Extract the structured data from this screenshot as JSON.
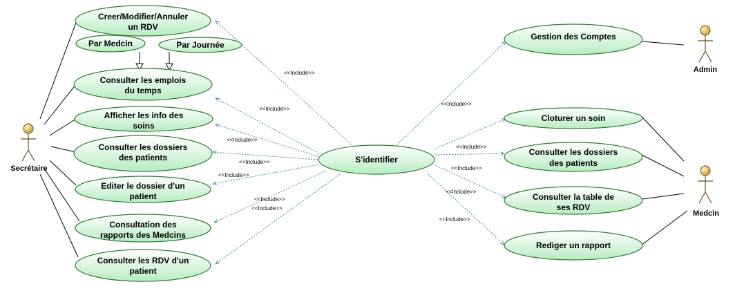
{
  "actors": {
    "secretaire": "Secrétaire",
    "admin": "Admin",
    "medcin": "Medcin"
  },
  "use_cases": {
    "creer_rdv": [
      "Creer/Modifier/Annuler",
      "un RDV"
    ],
    "par_medcin": [
      "Par Medcin"
    ],
    "par_journee": [
      "Par Journée"
    ],
    "consulter_emplois": [
      "Consulter les emplois",
      "du temps"
    ],
    "afficher_soins": [
      "Afficher les info des",
      "soins"
    ],
    "consulter_dossiers_sec": [
      "Consulter les dossiers",
      "des patients"
    ],
    "editer_dossier": [
      "Editer le dossier d'un",
      "patient"
    ],
    "consultation_rapports": [
      "Consultation des",
      "rapports des Medcins"
    ],
    "consulter_rdv_patient": [
      "Consulter les RDV d'un",
      "patient"
    ],
    "sidentifier": [
      "S'identifier"
    ],
    "gestion_comptes": [
      "Gestion des Comptes"
    ],
    "cloturer_soin": [
      "Cloturer un soin"
    ],
    "consulter_dossiers_med": [
      "Consulter les dossiers",
      "des patients"
    ],
    "consulter_table_rdv": [
      "Consulter la table de",
      "ses RDV"
    ],
    "rediger_rapport": [
      "Rediger un rapport"
    ]
  },
  "relation_label": "<<Include>>",
  "colors": {
    "usecase_fill_top": "#ffffff",
    "usecase_fill_bottom": "#b8ecc2",
    "usecase_stroke": "#2e7d32",
    "dependency": "#2e7d8a",
    "actor_head": "#d9b24c"
  }
}
